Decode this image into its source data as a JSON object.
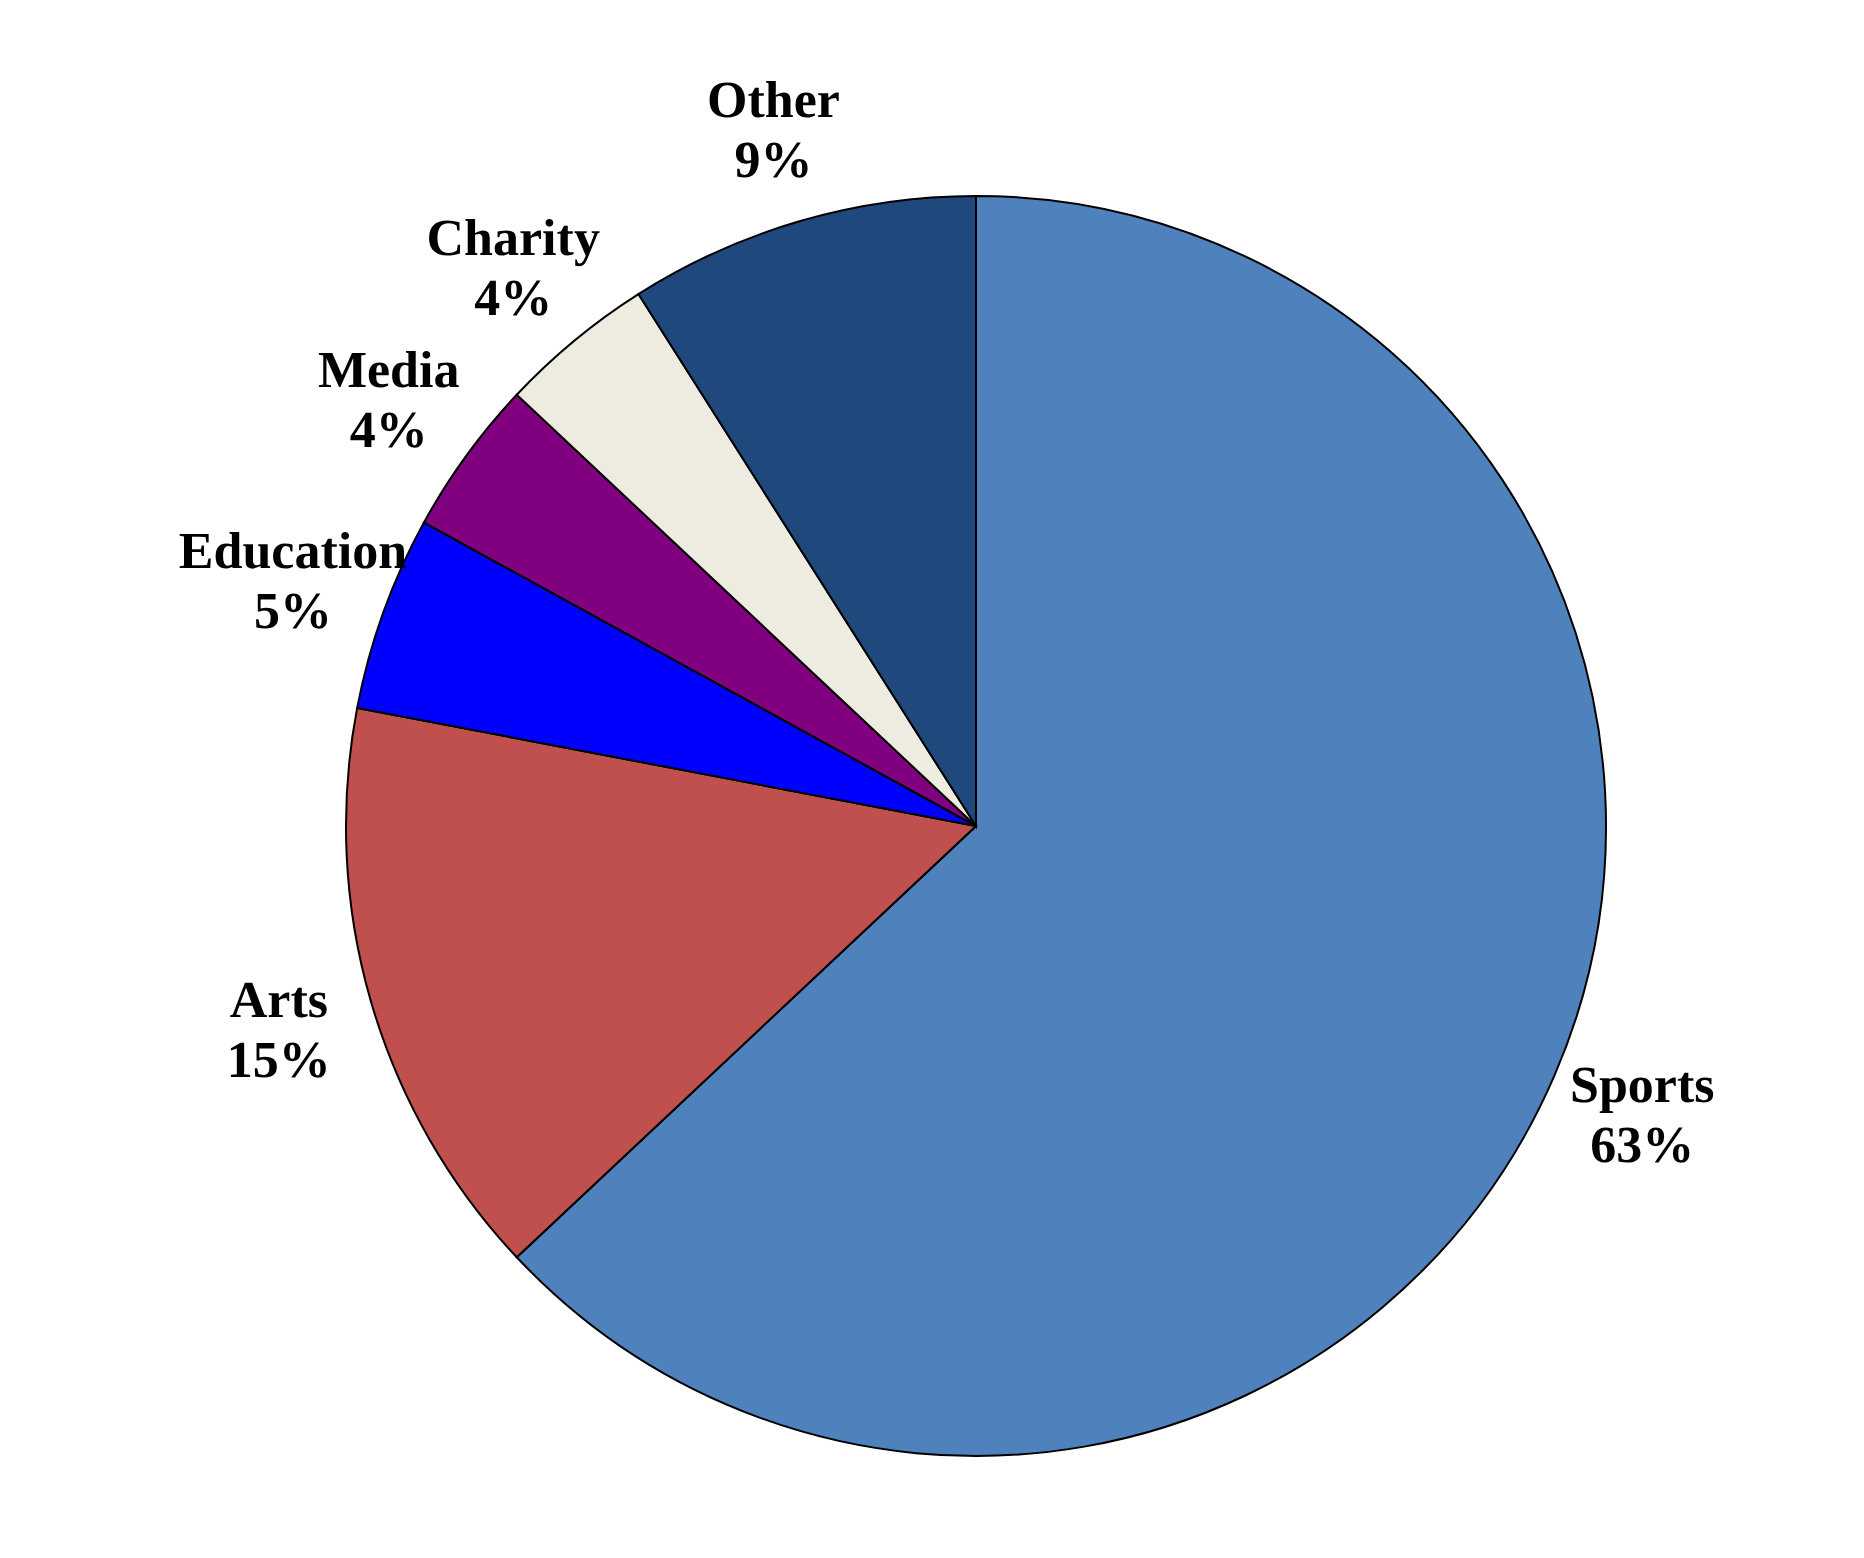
{
  "chart_data": {
    "type": "pie",
    "categories": [
      "Sports",
      "Arts",
      "Education",
      "Media",
      "Charity",
      "Other"
    ],
    "values": [
      63,
      15,
      5,
      4,
      4,
      9
    ],
    "colors": [
      "#4f81bd",
      "#c0504d",
      "#0000ff",
      "#800080",
      "#eeece1",
      "#1f497d"
    ],
    "value_labels": [
      "63%",
      "15%",
      "5%",
      "4%",
      "4%",
      "9%"
    ]
  }
}
